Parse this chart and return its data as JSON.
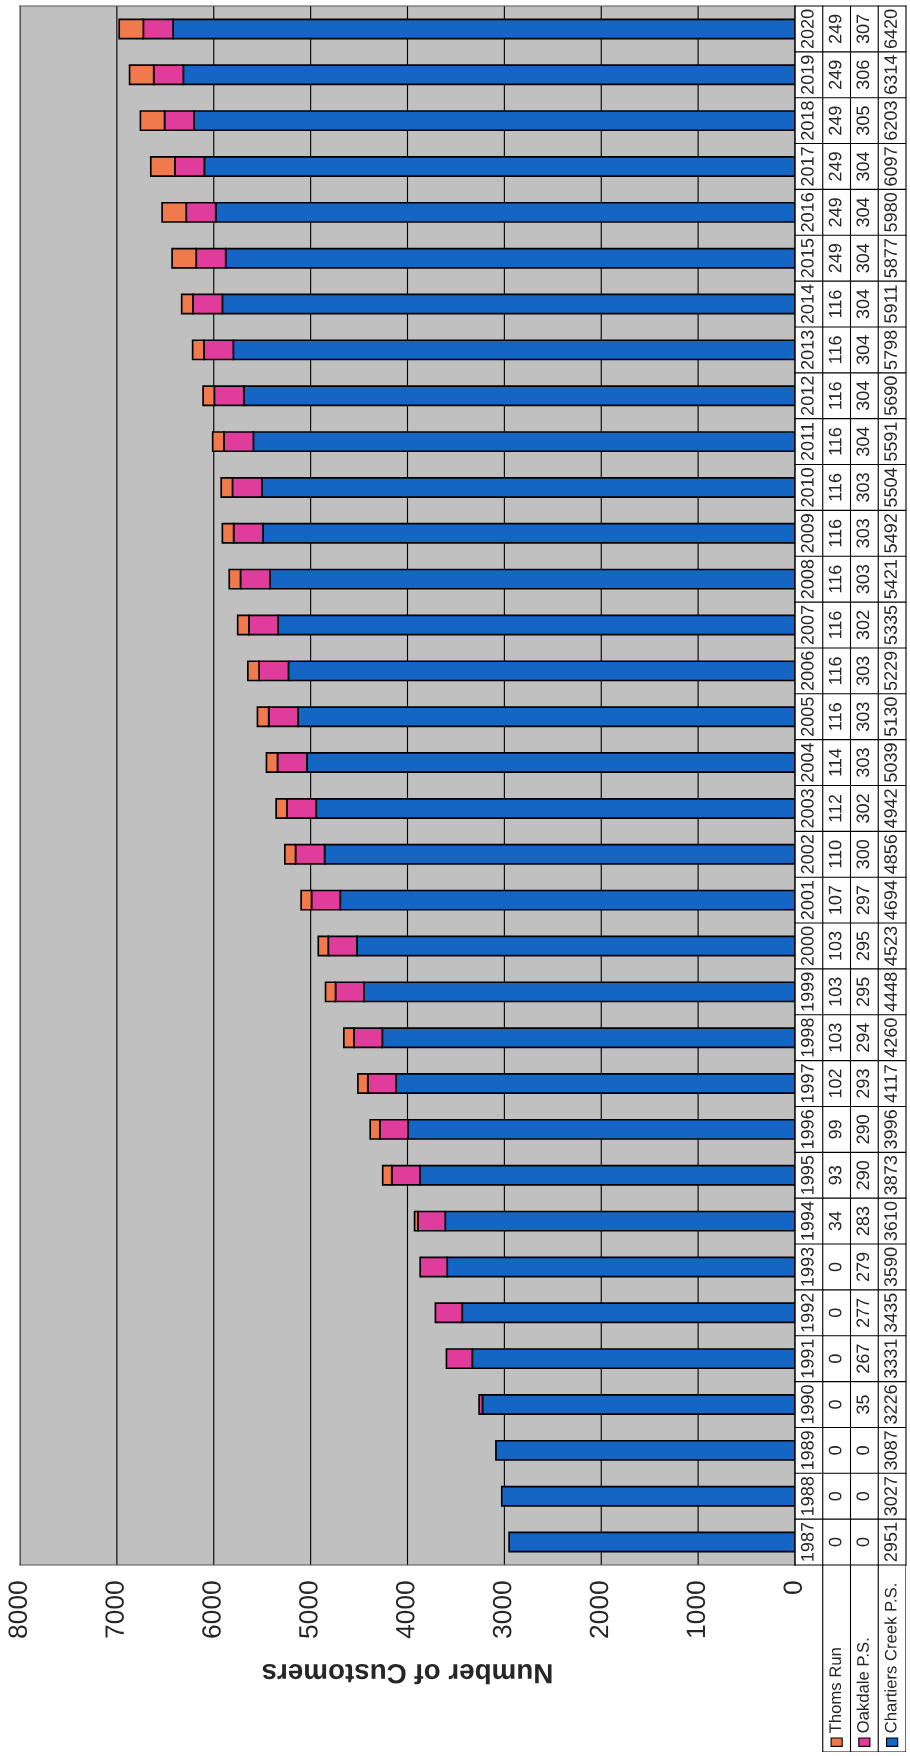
{
  "chart_data": {
    "type": "bar",
    "orientation": "horizontal",
    "stacked": true,
    "xlabel": "Number of Customers",
    "categories": [
      "2020",
      "2019",
      "2018",
      "2017",
      "2016",
      "2015",
      "2014",
      "2013",
      "2012",
      "2011",
      "2010",
      "2009",
      "2008",
      "2007",
      "2006",
      "2005",
      "2004",
      "2003",
      "2002",
      "2001",
      "2000",
      "1999",
      "1998",
      "1997",
      "1996",
      "1995",
      "1994",
      "1993",
      "1992",
      "1991",
      "1990",
      "1989",
      "1988",
      "1987"
    ],
    "series": [
      {
        "name": "Chartiers Creek P.S.",
        "color": "#1565c4",
        "values": [
          6420,
          6314,
          6203,
          6097,
          5980,
          5877,
          5911,
          5798,
          5690,
          5591,
          5504,
          5492,
          5421,
          5335,
          5229,
          5130,
          5039,
          4942,
          4856,
          4694,
          4523,
          4448,
          4260,
          4117,
          3996,
          3873,
          3610,
          3590,
          3435,
          3331,
          3226,
          3087,
          3027,
          2951
        ]
      },
      {
        "name": "Oakdale P.S.",
        "color": "#e03c9c",
        "values": [
          307,
          306,
          305,
          304,
          304,
          304,
          304,
          304,
          304,
          304,
          303,
          303,
          303,
          302,
          303,
          303,
          303,
          302,
          300,
          297,
          295,
          295,
          294,
          293,
          290,
          290,
          283,
          279,
          277,
          267,
          35,
          0,
          0,
          0
        ]
      },
      {
        "name": "Thoms Run",
        "color": "#f07a4c",
        "values": [
          249,
          249,
          249,
          249,
          249,
          249,
          116,
          116,
          116,
          116,
          116,
          116,
          116,
          116,
          116,
          116,
          114,
          112,
          110,
          107,
          103,
          103,
          103,
          102,
          99,
          93,
          34,
          0,
          0,
          0,
          0,
          0,
          0,
          0
        ]
      }
    ],
    "xlim": [
      8000,
      0
    ],
    "xticks": [
      0,
      1000,
      2000,
      3000,
      4000,
      5000,
      6000,
      7000,
      8000
    ],
    "grid": "x",
    "data_labels": true
  }
}
